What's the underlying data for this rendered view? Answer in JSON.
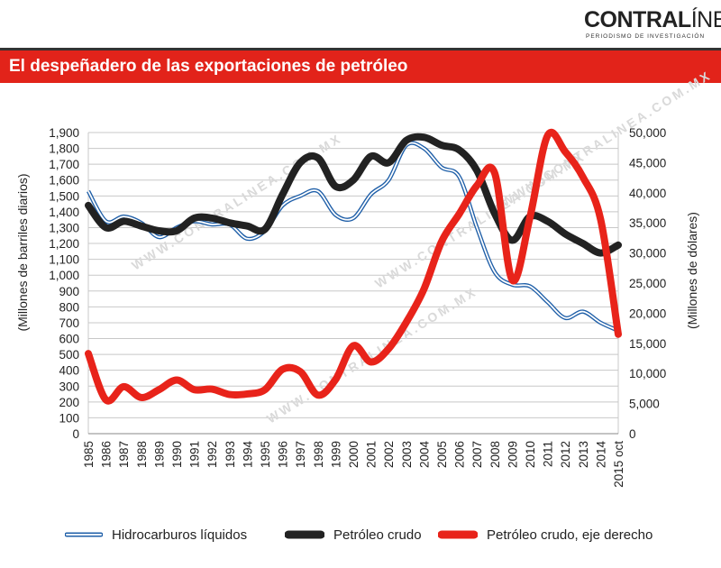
{
  "header": {
    "logo_bold": "CONTRAL",
    "logo_light": "ÍNEA",
    "logo_tagline": "PERIODISMO DE INVESTIGACIÓN",
    "title": "El despeñadero de las exportaciones de petróleo"
  },
  "watermark": "WWW.CONTRALINEA.COM.MX",
  "colors": {
    "accent": "#e2231a",
    "liquidos": "#1f5fa8",
    "crudo": "#222222",
    "crudo_derecho": "#e8231a"
  },
  "chart_data": {
    "type": "line",
    "x": [
      "1985",
      "1986",
      "1987",
      "1988",
      "1989",
      "1990",
      "1991",
      "1992",
      "1993",
      "1994",
      "1995",
      "1996",
      "1997",
      "1998",
      "1999",
      "2000",
      "2001",
      "2002",
      "2003",
      "2004",
      "2005",
      "2006",
      "2007",
      "2008",
      "2009",
      "2010",
      "2011",
      "2012",
      "2013",
      "2014",
      "2015 oct"
    ],
    "ylabel": "(Millones de barriles diarios)",
    "y2label": "(Millones de dólares)",
    "ylim": [
      0,
      1900
    ],
    "y2lim": [
      0,
      50000
    ],
    "yticks": [
      "0",
      "100",
      "200",
      "300",
      "400",
      "500",
      "600",
      "700",
      "800",
      "900",
      "1,000",
      "1,100",
      "1,200",
      "1,300",
      "1,400",
      "1,500",
      "1,600",
      "1,700",
      "1,800",
      "1,900"
    ],
    "y2ticks": [
      "0",
      "5,000",
      "10,000",
      "15,000",
      "20,000",
      "25,000",
      "30,000",
      "35,000",
      "40,000",
      "45,000",
      "50,000"
    ],
    "grid": true,
    "legend_position": "bottom",
    "series": [
      {
        "name": "Hidrocarburos líquidos",
        "axis": "left",
        "values": [
          1530,
          1340,
          1370,
          1330,
          1240,
          1300,
          1340,
          1320,
          1320,
          1230,
          1280,
          1440,
          1500,
          1530,
          1380,
          1360,
          1510,
          1600,
          1820,
          1800,
          1680,
          1620,
          1300,
          1020,
          940,
          930,
          830,
          730,
          770,
          700,
          650
        ]
      },
      {
        "name": "Petróleo crudo",
        "axis": "left",
        "values": [
          1440,
          1300,
          1340,
          1310,
          1280,
          1280,
          1360,
          1360,
          1330,
          1310,
          1290,
          1510,
          1710,
          1740,
          1560,
          1600,
          1750,
          1710,
          1850,
          1870,
          1820,
          1790,
          1660,
          1390,
          1220,
          1370,
          1340,
          1260,
          1200,
          1140,
          1190
        ]
      },
      {
        "name": "Petróleo crudo, eje derecho",
        "axis": "right",
        "values": [
          13300,
          5600,
          7800,
          6000,
          7300,
          8900,
          7300,
          7400,
          6500,
          6600,
          7300,
          10700,
          10300,
          6400,
          9000,
          14600,
          11900,
          14100,
          18500,
          24000,
          31900,
          36500,
          41200,
          43300,
          25500,
          35900,
          49500,
          46800,
          42600,
          35600,
          16500
        ]
      }
    ]
  }
}
